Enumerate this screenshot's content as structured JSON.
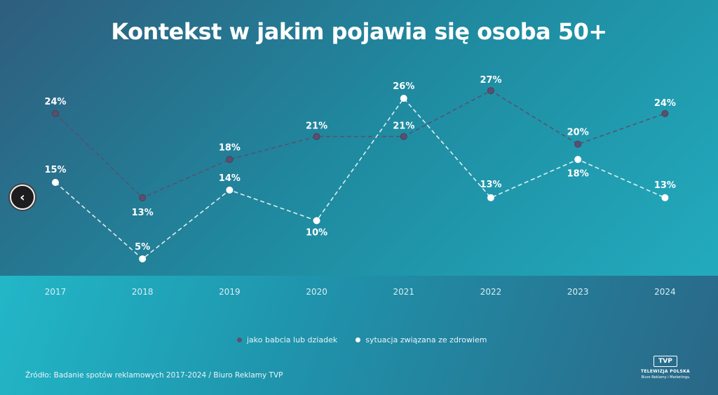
{
  "title": "Kontekst w jakim pojawia się  osoba 50+",
  "chart_data": {
    "type": "line",
    "x": [
      "2017",
      "2018",
      "2019",
      "2020",
      "2021",
      "2022",
      "2023",
      "2024"
    ],
    "series": [
      {
        "name": "jako babcia lub dziadek",
        "values": [
          24,
          13,
          18,
          21,
          21,
          27,
          20,
          24
        ],
        "labels": [
          "24%",
          "13%",
          "18%",
          "21%",
          "21%",
          "27%",
          "20%",
          "24%"
        ],
        "color": "#5c4f6e",
        "style": "dashed"
      },
      {
        "name": "sytuacja związana ze zdrowiem",
        "values": [
          15,
          5,
          14,
          10,
          26,
          13,
          18,
          13
        ],
        "labels": [
          "15%",
          "5%",
          "14%",
          "10%",
          "26%",
          "13%",
          "18%",
          "13%"
        ],
        "color": "#ffffff",
        "style": "dashed"
      }
    ],
    "grid": false,
    "legend_position": "bottom"
  },
  "legend": {
    "item1": "jako babcia lub dziadek",
    "item2": "sytuacja związana ze zdrowiem",
    "color1": "#5c4f6e",
    "color2": "#ffffff"
  },
  "source": "Źródło: Badanie spotów reklamowych 2017-2024 / Biuro Reklamy TVP",
  "logo": {
    "box": "TVP",
    "line1": "TELEWIZJA POLSKA",
    "line2": "Biuro Reklamy i Marketingu"
  },
  "nav": {
    "icon": "chevron-left-icon",
    "glyph": "‹"
  }
}
